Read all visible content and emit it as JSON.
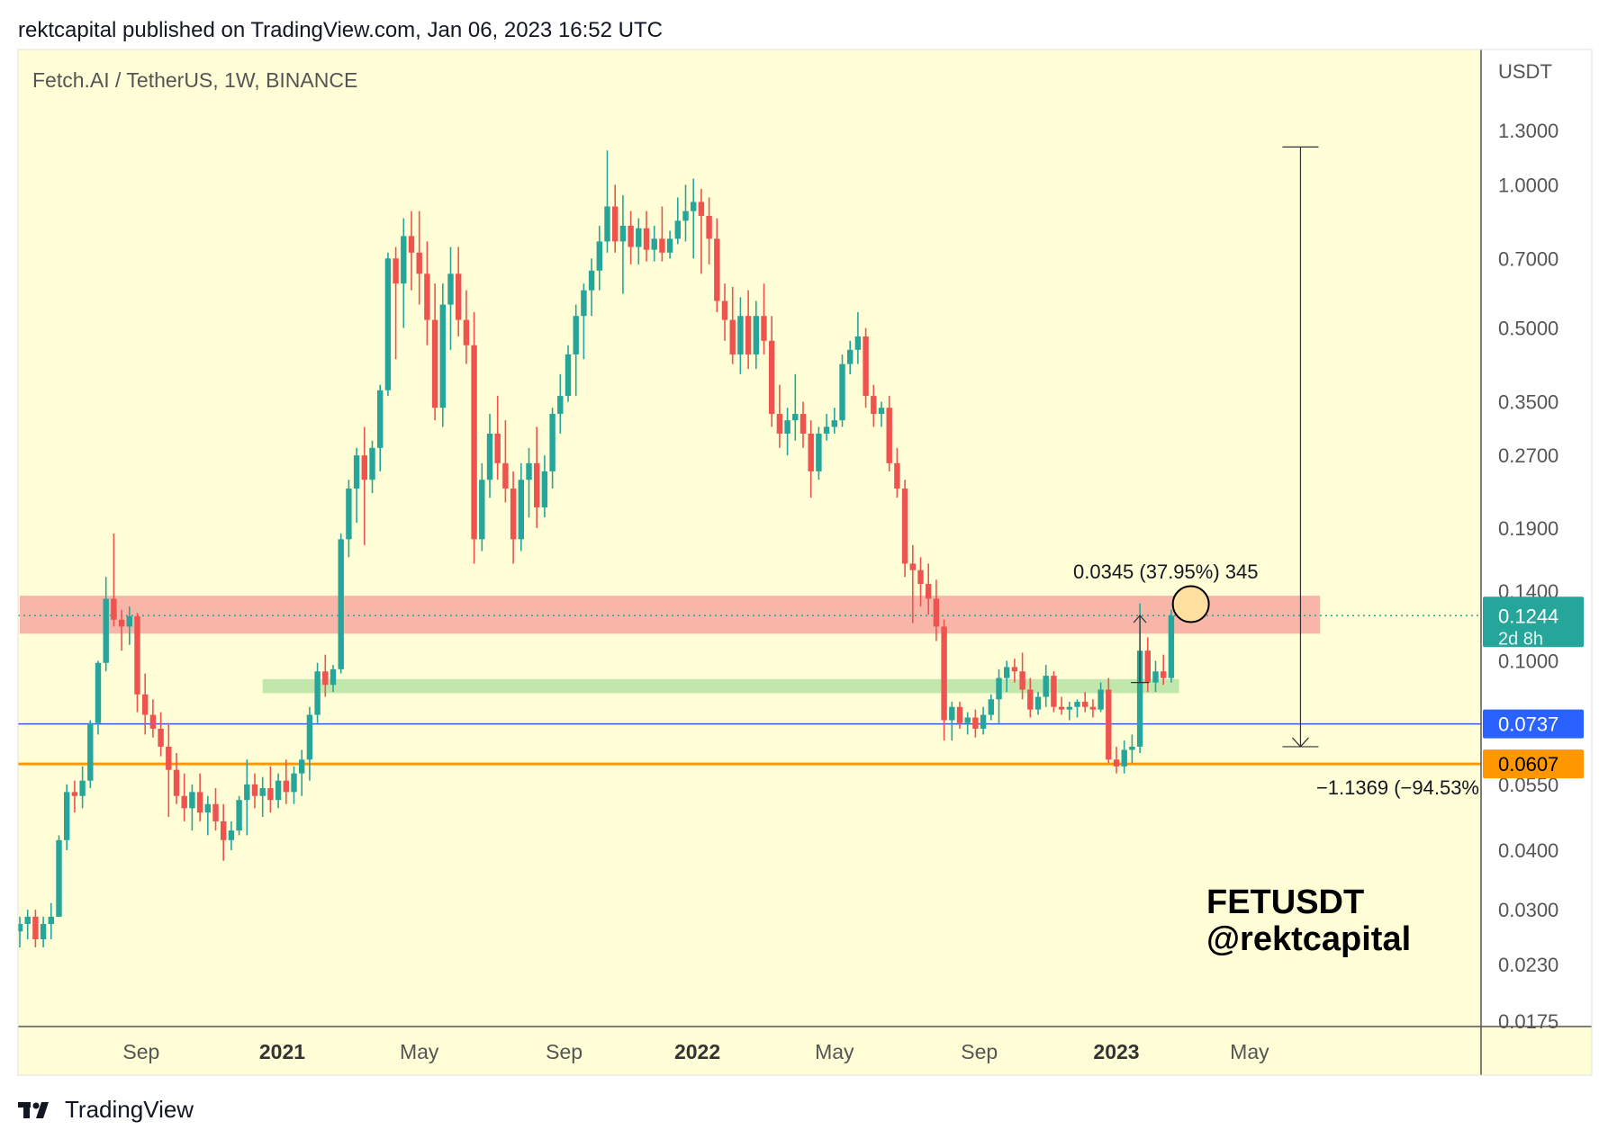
{
  "header": {
    "published": "rektcapital published on TradingView.com, Jan 06, 2023 16:52 UTC"
  },
  "footer": {
    "brand": "TradingView"
  },
  "colors": {
    "background": "#fffed6",
    "up": "#26a69a",
    "down": "#ef5350",
    "resistance_zone": "#f8b2a6",
    "support_zone": "#b7e3a4",
    "blue_line": "#2f5fe0",
    "orange_line": "#ff9800",
    "teal_label": "#26a69a",
    "blue_label": "#2962ff",
    "orange_label": "#ff9800"
  },
  "chart_data": {
    "type": "candlestick",
    "title": "Fetch.AI / TetherUS, 1W, BINANCE",
    "watermark": [
      "FETUSDT",
      "@rektcapital"
    ],
    "y_axis": {
      "unit": "USDT",
      "scale": "log",
      "range": [
        0.0175,
        1.5
      ],
      "ticks": [
        "1.3000",
        "1.0000",
        "0.7000",
        "0.5000",
        "0.3500",
        "0.2700",
        "0.1900",
        "0.1400",
        "0.1000",
        "0.0550",
        "0.0400",
        "0.0300",
        "0.0230",
        "0.0175"
      ]
    },
    "x_axis": {
      "ticks": [
        {
          "label": "Sep",
          "week": 15.5,
          "bold": false
        },
        {
          "label": "2021",
          "week": 33.5,
          "bold": true
        },
        {
          "label": "May",
          "week": 51,
          "bold": false
        },
        {
          "label": "Sep",
          "week": 69.5,
          "bold": false
        },
        {
          "label": "2022",
          "week": 86.5,
          "bold": true
        },
        {
          "label": "May",
          "week": 104,
          "bold": false
        },
        {
          "label": "Sep",
          "week": 122.5,
          "bold": false
        },
        {
          "label": "2023",
          "week": 140,
          "bold": true
        },
        {
          "label": "May",
          "week": 157,
          "bold": false
        }
      ]
    },
    "candles": [
      {
        "o": 0.027,
        "h": 0.029,
        "l": 0.025,
        "c": 0.028
      },
      {
        "o": 0.028,
        "h": 0.03,
        "l": 0.026,
        "c": 0.029
      },
      {
        "o": 0.029,
        "h": 0.03,
        "l": 0.025,
        "c": 0.026
      },
      {
        "o": 0.026,
        "h": 0.029,
        "l": 0.025,
        "c": 0.028
      },
      {
        "o": 0.028,
        "h": 0.031,
        "l": 0.026,
        "c": 0.029
      },
      {
        "o": 0.029,
        "h": 0.043,
        "l": 0.029,
        "c": 0.042
      },
      {
        "o": 0.042,
        "h": 0.055,
        "l": 0.04,
        "c": 0.053
      },
      {
        "o": 0.053,
        "h": 0.056,
        "l": 0.048,
        "c": 0.052
      },
      {
        "o": 0.052,
        "h": 0.06,
        "l": 0.049,
        "c": 0.056
      },
      {
        "o": 0.056,
        "h": 0.075,
        "l": 0.054,
        "c": 0.074
      },
      {
        "o": 0.074,
        "h": 0.1,
        "l": 0.07,
        "c": 0.099
      },
      {
        "o": 0.099,
        "h": 0.15,
        "l": 0.095,
        "c": 0.135
      },
      {
        "o": 0.135,
        "h": 0.185,
        "l": 0.118,
        "c": 0.122
      },
      {
        "o": 0.122,
        "h": 0.128,
        "l": 0.105,
        "c": 0.118
      },
      {
        "o": 0.118,
        "h": 0.13,
        "l": 0.108,
        "c": 0.124
      },
      {
        "o": 0.124,
        "h": 0.126,
        "l": 0.078,
        "c": 0.085
      },
      {
        "o": 0.085,
        "h": 0.094,
        "l": 0.07,
        "c": 0.077
      },
      {
        "o": 0.077,
        "h": 0.083,
        "l": 0.069,
        "c": 0.072
      },
      {
        "o": 0.072,
        "h": 0.078,
        "l": 0.063,
        "c": 0.066
      },
      {
        "o": 0.066,
        "h": 0.074,
        "l": 0.047,
        "c": 0.059
      },
      {
        "o": 0.059,
        "h": 0.064,
        "l": 0.05,
        "c": 0.052
      },
      {
        "o": 0.052,
        "h": 0.058,
        "l": 0.046,
        "c": 0.049
      },
      {
        "o": 0.049,
        "h": 0.055,
        "l": 0.044,
        "c": 0.053
      },
      {
        "o": 0.053,
        "h": 0.058,
        "l": 0.046,
        "c": 0.048
      },
      {
        "o": 0.048,
        "h": 0.052,
        "l": 0.043,
        "c": 0.05
      },
      {
        "o": 0.05,
        "h": 0.054,
        "l": 0.044,
        "c": 0.046
      },
      {
        "o": 0.046,
        "h": 0.05,
        "l": 0.038,
        "c": 0.042
      },
      {
        "o": 0.042,
        "h": 0.046,
        "l": 0.04,
        "c": 0.044
      },
      {
        "o": 0.044,
        "h": 0.052,
        "l": 0.043,
        "c": 0.051
      },
      {
        "o": 0.051,
        "h": 0.062,
        "l": 0.043,
        "c": 0.055
      },
      {
        "o": 0.055,
        "h": 0.058,
        "l": 0.049,
        "c": 0.052
      },
      {
        "o": 0.052,
        "h": 0.057,
        "l": 0.047,
        "c": 0.054
      },
      {
        "o": 0.054,
        "h": 0.06,
        "l": 0.048,
        "c": 0.051
      },
      {
        "o": 0.051,
        "h": 0.058,
        "l": 0.049,
        "c": 0.056
      },
      {
        "o": 0.056,
        "h": 0.062,
        "l": 0.05,
        "c": 0.053
      },
      {
        "o": 0.053,
        "h": 0.06,
        "l": 0.05,
        "c": 0.058
      },
      {
        "o": 0.058,
        "h": 0.065,
        "l": 0.052,
        "c": 0.062
      },
      {
        "o": 0.062,
        "h": 0.08,
        "l": 0.056,
        "c": 0.077
      },
      {
        "o": 0.077,
        "h": 0.099,
        "l": 0.074,
        "c": 0.095
      },
      {
        "o": 0.095,
        "h": 0.103,
        "l": 0.084,
        "c": 0.089
      },
      {
        "o": 0.089,
        "h": 0.098,
        "l": 0.086,
        "c": 0.096
      },
      {
        "o": 0.096,
        "h": 0.185,
        "l": 0.094,
        "c": 0.18
      },
      {
        "o": 0.18,
        "h": 0.24,
        "l": 0.165,
        "c": 0.23
      },
      {
        "o": 0.23,
        "h": 0.28,
        "l": 0.195,
        "c": 0.27
      },
      {
        "o": 0.27,
        "h": 0.31,
        "l": 0.175,
        "c": 0.24
      },
      {
        "o": 0.24,
        "h": 0.29,
        "l": 0.225,
        "c": 0.28
      },
      {
        "o": 0.28,
        "h": 0.38,
        "l": 0.25,
        "c": 0.37
      },
      {
        "o": 0.37,
        "h": 0.72,
        "l": 0.36,
        "c": 0.7
      },
      {
        "o": 0.7,
        "h": 0.74,
        "l": 0.43,
        "c": 0.62
      },
      {
        "o": 0.62,
        "h": 0.85,
        "l": 0.5,
        "c": 0.78
      },
      {
        "o": 0.78,
        "h": 0.88,
        "l": 0.6,
        "c": 0.72
      },
      {
        "o": 0.72,
        "h": 0.88,
        "l": 0.56,
        "c": 0.65
      },
      {
        "o": 0.65,
        "h": 0.76,
        "l": 0.46,
        "c": 0.52
      },
      {
        "o": 0.52,
        "h": 0.62,
        "l": 0.32,
        "c": 0.34
      },
      {
        "o": 0.34,
        "h": 0.62,
        "l": 0.31,
        "c": 0.56
      },
      {
        "o": 0.56,
        "h": 0.74,
        "l": 0.45,
        "c": 0.65
      },
      {
        "o": 0.65,
        "h": 0.74,
        "l": 0.48,
        "c": 0.52
      },
      {
        "o": 0.52,
        "h": 0.6,
        "l": 0.42,
        "c": 0.46
      },
      {
        "o": 0.46,
        "h": 0.54,
        "l": 0.16,
        "c": 0.18
      },
      {
        "o": 0.18,
        "h": 0.26,
        "l": 0.17,
        "c": 0.24
      },
      {
        "o": 0.24,
        "h": 0.33,
        "l": 0.22,
        "c": 0.3
      },
      {
        "o": 0.3,
        "h": 0.36,
        "l": 0.24,
        "c": 0.26
      },
      {
        "o": 0.26,
        "h": 0.32,
        "l": 0.215,
        "c": 0.23
      },
      {
        "o": 0.23,
        "h": 0.25,
        "l": 0.16,
        "c": 0.18
      },
      {
        "o": 0.18,
        "h": 0.26,
        "l": 0.17,
        "c": 0.24
      },
      {
        "o": 0.24,
        "h": 0.28,
        "l": 0.2,
        "c": 0.26
      },
      {
        "o": 0.26,
        "h": 0.31,
        "l": 0.19,
        "c": 0.21
      },
      {
        "o": 0.21,
        "h": 0.27,
        "l": 0.2,
        "c": 0.25
      },
      {
        "o": 0.25,
        "h": 0.34,
        "l": 0.23,
        "c": 0.33
      },
      {
        "o": 0.33,
        "h": 0.4,
        "l": 0.3,
        "c": 0.36
      },
      {
        "o": 0.36,
        "h": 0.46,
        "l": 0.35,
        "c": 0.44
      },
      {
        "o": 0.44,
        "h": 0.56,
        "l": 0.36,
        "c": 0.53
      },
      {
        "o": 0.53,
        "h": 0.62,
        "l": 0.43,
        "c": 0.6
      },
      {
        "o": 0.6,
        "h": 0.7,
        "l": 0.53,
        "c": 0.66
      },
      {
        "o": 0.66,
        "h": 0.82,
        "l": 0.6,
        "c": 0.76
      },
      {
        "o": 0.76,
        "h": 1.18,
        "l": 0.72,
        "c": 0.9
      },
      {
        "o": 0.9,
        "h": 1.0,
        "l": 0.72,
        "c": 0.76
      },
      {
        "o": 0.76,
        "h": 0.95,
        "l": 0.59,
        "c": 0.82
      },
      {
        "o": 0.82,
        "h": 0.88,
        "l": 0.68,
        "c": 0.74
      },
      {
        "o": 0.74,
        "h": 0.85,
        "l": 0.68,
        "c": 0.81
      },
      {
        "o": 0.81,
        "h": 0.88,
        "l": 0.69,
        "c": 0.73
      },
      {
        "o": 0.73,
        "h": 0.82,
        "l": 0.69,
        "c": 0.77
      },
      {
        "o": 0.77,
        "h": 0.9,
        "l": 0.69,
        "c": 0.72
      },
      {
        "o": 0.72,
        "h": 0.8,
        "l": 0.7,
        "c": 0.77
      },
      {
        "o": 0.77,
        "h": 0.94,
        "l": 0.75,
        "c": 0.84
      },
      {
        "o": 0.84,
        "h": 1.0,
        "l": 0.76,
        "c": 0.88
      },
      {
        "o": 0.88,
        "h": 1.03,
        "l": 0.7,
        "c": 0.92
      },
      {
        "o": 0.92,
        "h": 0.98,
        "l": 0.65,
        "c": 0.86
      },
      {
        "o": 0.86,
        "h": 0.94,
        "l": 0.68,
        "c": 0.77
      },
      {
        "o": 0.77,
        "h": 0.85,
        "l": 0.54,
        "c": 0.57
      },
      {
        "o": 0.57,
        "h": 0.62,
        "l": 0.47,
        "c": 0.52
      },
      {
        "o": 0.52,
        "h": 0.61,
        "l": 0.42,
        "c": 0.44
      },
      {
        "o": 0.44,
        "h": 0.58,
        "l": 0.4,
        "c": 0.53
      },
      {
        "o": 0.53,
        "h": 0.6,
        "l": 0.41,
        "c": 0.44
      },
      {
        "o": 0.44,
        "h": 0.57,
        "l": 0.41,
        "c": 0.53
      },
      {
        "o": 0.53,
        "h": 0.62,
        "l": 0.44,
        "c": 0.47
      },
      {
        "o": 0.47,
        "h": 0.53,
        "l": 0.31,
        "c": 0.33
      },
      {
        "o": 0.33,
        "h": 0.38,
        "l": 0.28,
        "c": 0.3
      },
      {
        "o": 0.3,
        "h": 0.34,
        "l": 0.27,
        "c": 0.32
      },
      {
        "o": 0.32,
        "h": 0.4,
        "l": 0.29,
        "c": 0.33
      },
      {
        "o": 0.33,
        "h": 0.35,
        "l": 0.28,
        "c": 0.3
      },
      {
        "o": 0.3,
        "h": 0.32,
        "l": 0.22,
        "c": 0.25
      },
      {
        "o": 0.25,
        "h": 0.31,
        "l": 0.24,
        "c": 0.3
      },
      {
        "o": 0.3,
        "h": 0.33,
        "l": 0.29,
        "c": 0.31
      },
      {
        "o": 0.31,
        "h": 0.34,
        "l": 0.3,
        "c": 0.32
      },
      {
        "o": 0.32,
        "h": 0.44,
        "l": 0.31,
        "c": 0.42
      },
      {
        "o": 0.42,
        "h": 0.47,
        "l": 0.4,
        "c": 0.45
      },
      {
        "o": 0.45,
        "h": 0.54,
        "l": 0.42,
        "c": 0.48
      },
      {
        "o": 0.48,
        "h": 0.5,
        "l": 0.34,
        "c": 0.36
      },
      {
        "o": 0.36,
        "h": 0.38,
        "l": 0.31,
        "c": 0.33
      },
      {
        "o": 0.33,
        "h": 0.35,
        "l": 0.31,
        "c": 0.34
      },
      {
        "o": 0.34,
        "h": 0.36,
        "l": 0.25,
        "c": 0.26
      },
      {
        "o": 0.26,
        "h": 0.28,
        "l": 0.22,
        "c": 0.23
      },
      {
        "o": 0.23,
        "h": 0.24,
        "l": 0.15,
        "c": 0.16
      },
      {
        "o": 0.16,
        "h": 0.175,
        "l": 0.12,
        "c": 0.155
      },
      {
        "o": 0.155,
        "h": 0.165,
        "l": 0.13,
        "c": 0.145
      },
      {
        "o": 0.145,
        "h": 0.16,
        "l": 0.125,
        "c": 0.135
      },
      {
        "o": 0.135,
        "h": 0.148,
        "l": 0.11,
        "c": 0.118
      },
      {
        "o": 0.118,
        "h": 0.122,
        "l": 0.068,
        "c": 0.075
      },
      {
        "o": 0.075,
        "h": 0.082,
        "l": 0.068,
        "c": 0.08
      },
      {
        "o": 0.08,
        "h": 0.082,
        "l": 0.072,
        "c": 0.074
      },
      {
        "o": 0.074,
        "h": 0.078,
        "l": 0.07,
        "c": 0.076
      },
      {
        "o": 0.076,
        "h": 0.079,
        "l": 0.069,
        "c": 0.072
      },
      {
        "o": 0.072,
        "h": 0.08,
        "l": 0.07,
        "c": 0.077
      },
      {
        "o": 0.077,
        "h": 0.085,
        "l": 0.075,
        "c": 0.083
      },
      {
        "o": 0.083,
        "h": 0.096,
        "l": 0.074,
        "c": 0.092
      },
      {
        "o": 0.092,
        "h": 0.1,
        "l": 0.086,
        "c": 0.097
      },
      {
        "o": 0.097,
        "h": 0.101,
        "l": 0.09,
        "c": 0.095
      },
      {
        "o": 0.095,
        "h": 0.104,
        "l": 0.083,
        "c": 0.087
      },
      {
        "o": 0.087,
        "h": 0.092,
        "l": 0.076,
        "c": 0.079
      },
      {
        "o": 0.079,
        "h": 0.086,
        "l": 0.077,
        "c": 0.084
      },
      {
        "o": 0.084,
        "h": 0.098,
        "l": 0.08,
        "c": 0.093
      },
      {
        "o": 0.093,
        "h": 0.095,
        "l": 0.078,
        "c": 0.08
      },
      {
        "o": 0.08,
        "h": 0.084,
        "l": 0.077,
        "c": 0.079
      },
      {
        "o": 0.079,
        "h": 0.082,
        "l": 0.075,
        "c": 0.08
      },
      {
        "o": 0.08,
        "h": 0.083,
        "l": 0.076,
        "c": 0.082
      },
      {
        "o": 0.082,
        "h": 0.086,
        "l": 0.078,
        "c": 0.08
      },
      {
        "o": 0.08,
        "h": 0.083,
        "l": 0.076,
        "c": 0.079
      },
      {
        "o": 0.079,
        "h": 0.09,
        "l": 0.078,
        "c": 0.087
      },
      {
        "o": 0.087,
        "h": 0.092,
        "l": 0.061,
        "c": 0.062
      },
      {
        "o": 0.062,
        "h": 0.066,
        "l": 0.058,
        "c": 0.06
      },
      {
        "o": 0.06,
        "h": 0.068,
        "l": 0.058,
        "c": 0.065
      },
      {
        "o": 0.065,
        "h": 0.07,
        "l": 0.061,
        "c": 0.066
      },
      {
        "o": 0.066,
        "h": 0.132,
        "l": 0.064,
        "c": 0.105
      },
      {
        "o": 0.105,
        "h": 0.112,
        "l": 0.086,
        "c": 0.09
      },
      {
        "o": 0.09,
        "h": 0.1,
        "l": 0.086,
        "c": 0.095
      },
      {
        "o": 0.095,
        "h": 0.103,
        "l": 0.089,
        "c": 0.092
      },
      {
        "o": 0.092,
        "h": 0.128,
        "l": 0.09,
        "c": 0.1244
      }
    ],
    "zones": [
      {
        "type": "resistance",
        "from": 0.114,
        "to": 0.137,
        "x_start_week": 0,
        "x_end_week": 166
      },
      {
        "type": "support",
        "from": 0.0855,
        "to": 0.0915,
        "x_start_week": 31,
        "x_end_week": 148
      }
    ],
    "horizontal_lines": [
      {
        "name": "blue",
        "price": 0.0737,
        "label": "0.0737"
      },
      {
        "name": "orange",
        "price": 0.0607,
        "label": "0.0607"
      }
    ],
    "current_price": {
      "price": 0.1244,
      "label": "0.1244",
      "countdown": "2d 8h"
    },
    "measurements": [
      {
        "from_week": 143,
        "from": 0.09,
        "to": 0.1245,
        "label": "0.0345 (37.95%) 345"
      },
      {
        "from_week": 163.5,
        "from": 1.2,
        "to": 0.066,
        "label": "−1.1369 (−94.53%"
      }
    ],
    "target_circle": {
      "week": 149.5,
      "price": 0.1315
    }
  }
}
